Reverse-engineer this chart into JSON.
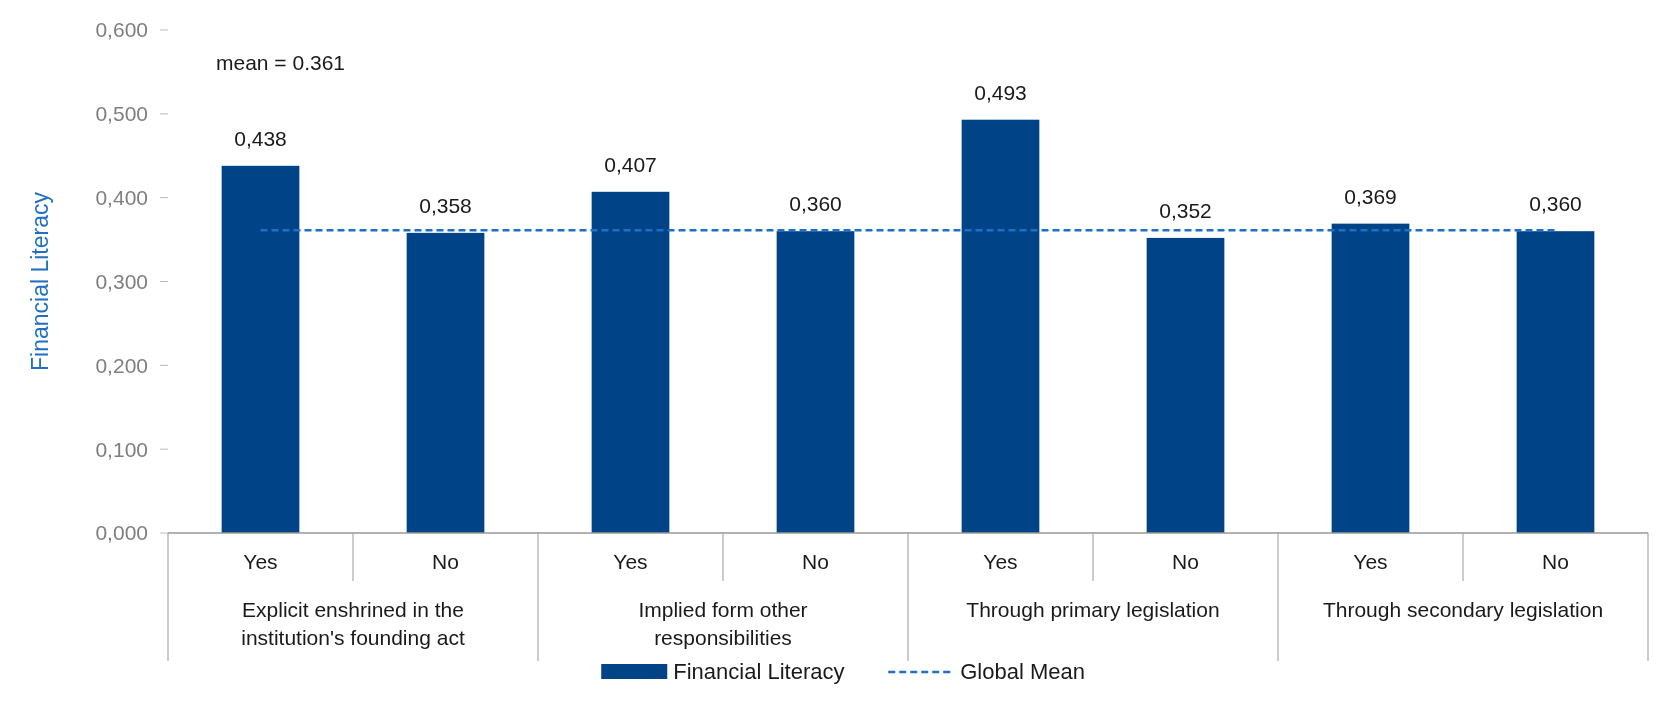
{
  "chart_data": {
    "type": "bar",
    "ylabel": "Financial Literacy",
    "categories": [
      "Yes",
      "No",
      "Yes",
      "No",
      "Yes",
      "No",
      "Yes",
      "No"
    ],
    "series": [
      {
        "name": "Financial Literacy",
        "color": "#004386",
        "values": [
          0.438,
          0.358,
          0.407,
          0.36,
          0.493,
          0.352,
          0.369,
          0.36
        ],
        "value_labels": [
          "0,438",
          "0,358",
          "0,407",
          "0,360",
          "0,493",
          "0,352",
          "0,369",
          "0,360"
        ]
      },
      {
        "name": "Global Mean",
        "type": "line",
        "color": "#1f6fc5",
        "line_style": "dashed",
        "marker": "none",
        "values": [
          0.361,
          0.361,
          0.361,
          0.361,
          0.361,
          0.361,
          0.361,
          0.361
        ]
      }
    ],
    "ylim": [
      0,
      0.6
    ],
    "yticks": [
      {
        "value": 0,
        "label": "0,000"
      },
      {
        "value": 0.1,
        "label": "0,100"
      },
      {
        "value": 0.2,
        "label": "0,200"
      },
      {
        "value": 0.3,
        "label": "0,300"
      },
      {
        "value": 0.4,
        "label": "0,400"
      },
      {
        "value": 0.5,
        "label": "0,500"
      },
      {
        "value": 0.6,
        "label": "0,600"
      }
    ],
    "annotations": [
      "mean = 0.361",
      "Explicit enshrined in the institution's founding act",
      "Implied form other responsibilities",
      "Through primary legislation",
      "Through secondary legislation"
    ],
    "grid": false,
    "legend": "bottom"
  }
}
